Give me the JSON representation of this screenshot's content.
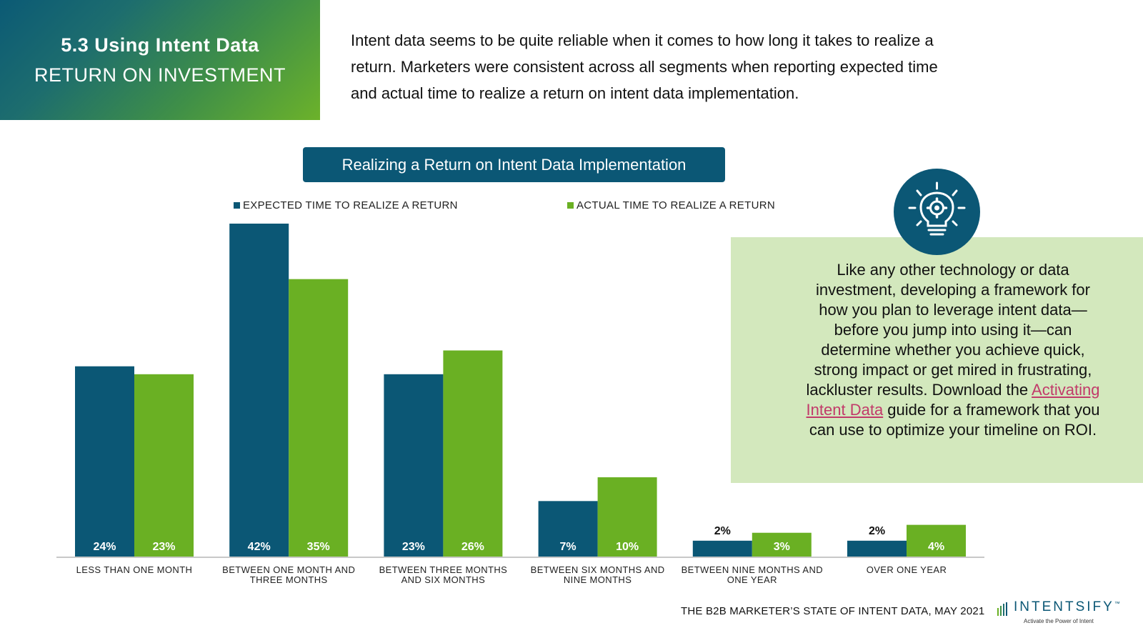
{
  "header": {
    "title": "5.3 Using Intent Data",
    "subtitle": "RETURN ON INVESTMENT"
  },
  "intro_text": "Intent data seems to be quite reliable when it comes to how long it takes to realize a return. Marketers were consistent across all segments when reporting expected time and actual time to realize a return on intent data implementation.",
  "callout": {
    "text_before_link": "Like any other technology or data investment, developing a framework for how you plan to leverage intent data—before you jump into using it—can determine whether you achieve quick, strong impact or get mired in frustrating, lackluster results. Download the ",
    "link_text": "Activating Intent Data",
    "text_after_link": " guide for a framework that you can use to optimize your timeline on ROI.",
    "icon": "lightbulb-gear-icon"
  },
  "footer": {
    "source": "THE B2B MARKETER’S STATE OF INTENT DATA, MAY 2021",
    "logo_name": "INTENTSIFY",
    "logo_tm": "™",
    "logo_tagline": "Activate the Power of Intent"
  },
  "colors": {
    "expected": "#0b5775",
    "actual": "#6ab023",
    "link": "#c23a6a"
  },
  "chart_data": {
    "type": "bar",
    "title": "Realizing a Return on Intent Data Implementation",
    "categories": [
      [
        "LESS THAN ONE MONTH"
      ],
      [
        "BETWEEN ONE MONTH AND",
        "THREE MONTHS"
      ],
      [
        "BETWEEN THREE MONTHS",
        "AND SIX MONTHS"
      ],
      [
        "BETWEEN SIX MONTHS AND",
        "NINE MONTHS"
      ],
      [
        "BETWEEN NINE MONTHS AND",
        "ONE YEAR"
      ],
      [
        "OVER ONE YEAR"
      ]
    ],
    "series": [
      {
        "name": "EXPECTED TIME TO REALIZE A RETURN",
        "values": [
          24,
          42,
          23,
          7,
          2,
          2
        ]
      },
      {
        "name": "ACTUAL TIME TO REALIZE A RETURN",
        "values": [
          23,
          35,
          26,
          10,
          3,
          4
        ]
      }
    ],
    "value_suffix": "%",
    "ylim": [
      0,
      42
    ],
    "legend_position": "top"
  }
}
